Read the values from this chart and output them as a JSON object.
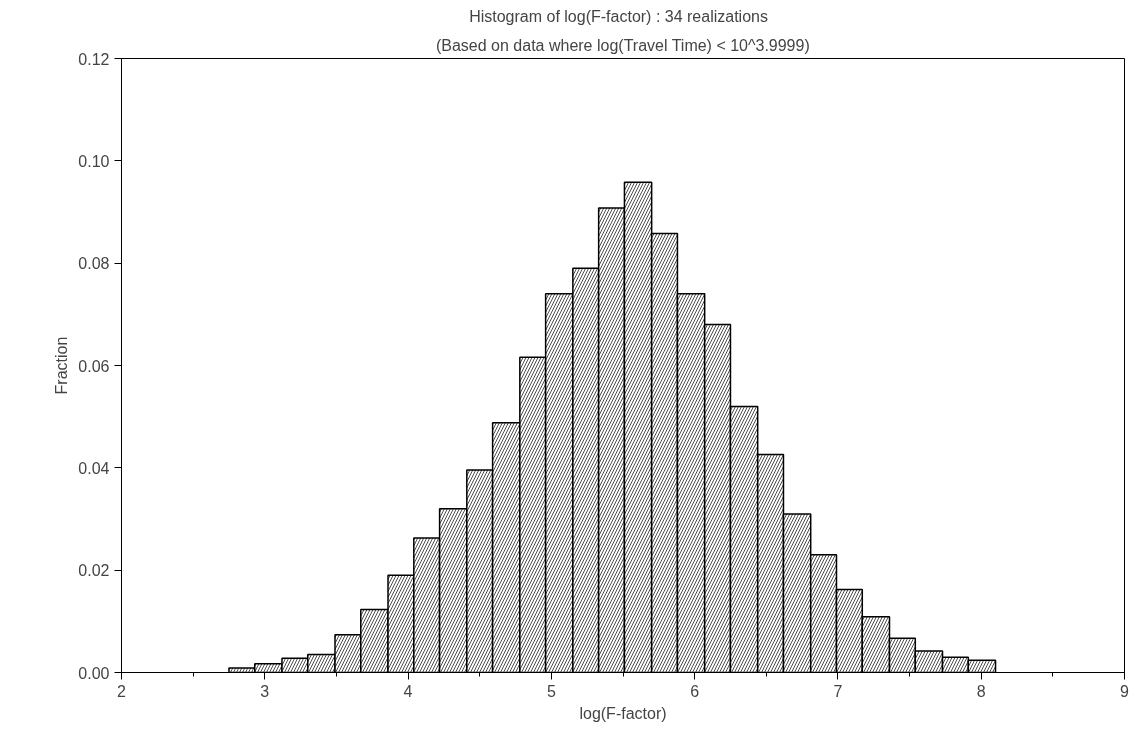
{
  "chart_data": {
    "type": "histogram",
    "title": "Histogram of log(F-factor) :   34 realizations",
    "subtitle": "(Based on data where log(Travel Time) < 10^3.9999)",
    "xlabel": "log(F-factor)",
    "ylabel": "Fraction",
    "bins": [
      2.75,
      2.93,
      3.12,
      3.3,
      3.49,
      3.67,
      3.86,
      4.04,
      4.22,
      4.41,
      4.59,
      4.78,
      4.96,
      5.15,
      5.33,
      5.51,
      5.7,
      5.88,
      6.07,
      6.25,
      6.44,
      6.62,
      6.81,
      6.99,
      7.17,
      7.36,
      7.54,
      7.73,
      7.91,
      8.1
    ],
    "values": [
      0.0009,
      0.0017,
      0.0028,
      0.0035,
      0.0074,
      0.0123,
      0.019,
      0.0263,
      0.032,
      0.0396,
      0.0488,
      0.0616,
      0.074,
      0.079,
      0.0908,
      0.0958,
      0.0858,
      0.074,
      0.068,
      0.052,
      0.0426,
      0.031,
      0.023,
      0.0162,
      0.0109,
      0.0067,
      0.0042,
      0.003,
      0.0024
    ],
    "color": "#ffffff",
    "xlim": [
      2,
      9
    ],
    "xticks": [
      2,
      3,
      4,
      5,
      6,
      7,
      8,
      9
    ],
    "ylim": [
      0,
      0.12
    ],
    "yticks": [
      {
        "value": 0,
        "label": "0.00"
      },
      {
        "value": 0.02,
        "label": "0.02"
      },
      {
        "value": 0.04,
        "label": "0.04"
      },
      {
        "value": 0.06,
        "label": "0.06"
      },
      {
        "value": 0.08,
        "label": "0.08"
      },
      {
        "value": 0.1,
        "label": "0.10"
      },
      {
        "value": 0.12,
        "label": "0.12"
      }
    ],
    "grid": false
  }
}
